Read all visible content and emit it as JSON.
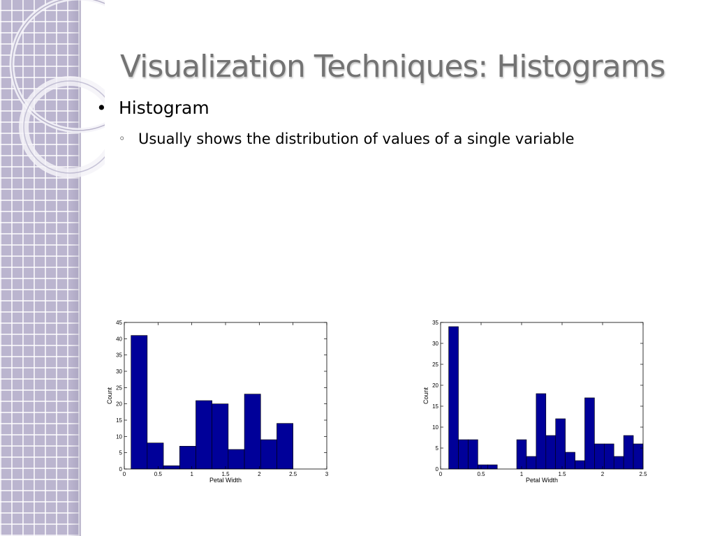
{
  "slide": {
    "title": "Visualization Techniques: Histograms",
    "bullets": [
      {
        "level": 1,
        "marker": "•",
        "text": "Histogram"
      },
      {
        "level": 2,
        "marker": "◦",
        "text": "Usually shows the distribution of values of a single variable"
      }
    ],
    "colors": {
      "bar": "#000099",
      "title": "#737373",
      "sidebar": "#bbb5cf"
    }
  },
  "chart_data": [
    {
      "type": "bar",
      "title": "",
      "xlabel": "Petal Width",
      "ylabel": "Count",
      "xlim": [
        0,
        3
      ],
      "ylim": [
        0,
        45
      ],
      "xticks": [
        0,
        0.5,
        1,
        1.5,
        2,
        2.5,
        3
      ],
      "yticks": [
        0,
        5,
        10,
        15,
        20,
        25,
        30,
        35,
        40,
        45
      ],
      "bin_edges": [
        0.1,
        0.34,
        0.58,
        0.82,
        1.06,
        1.3,
        1.54,
        1.78,
        2.02,
        2.26,
        2.5
      ],
      "values": [
        41,
        8,
        1,
        7,
        21,
        20,
        6,
        23,
        9,
        14
      ],
      "color": "#000099",
      "grid": false
    },
    {
      "type": "bar",
      "title": "",
      "xlabel": "Petal Width",
      "ylabel": "Count",
      "xlim": [
        0,
        2.5
      ],
      "ylim": [
        0,
        35
      ],
      "xticks": [
        0,
        0.5,
        1,
        1.5,
        2,
        2.5
      ],
      "yticks": [
        0,
        5,
        10,
        15,
        20,
        25,
        30,
        35
      ],
      "bin_edges": [
        0.1,
        0.22,
        0.34,
        0.46,
        0.58,
        0.7,
        0.82,
        0.94,
        1.06,
        1.18,
        1.3,
        1.42,
        1.54,
        1.66,
        1.78,
        1.9,
        2.02,
        2.14,
        2.26,
        2.38,
        2.5
      ],
      "values": [
        34,
        7,
        7,
        1,
        1,
        0,
        0,
        7,
        3,
        18,
        8,
        12,
        4,
        2,
        17,
        6,
        6,
        3,
        8,
        6
      ],
      "color": "#000099",
      "grid": false
    }
  ]
}
